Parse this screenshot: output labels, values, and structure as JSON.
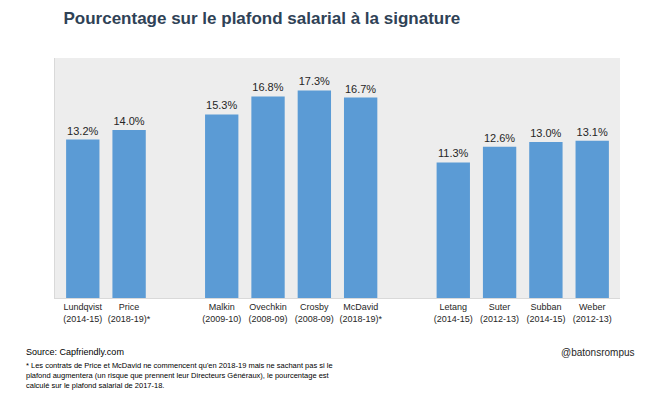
{
  "chart_data": {
    "type": "bar",
    "title": "Pourcentage sur le plafond salarial à la signature",
    "categories": [
      "Lundqvist (2014-15)",
      "Price (2018-19)*",
      null,
      "Malkin (2009-10)",
      "Ovechkin (2008-09)",
      "Crosby (2008-09)",
      "McDavid (2018-19)*",
      null,
      "Letang (2014-15)",
      "Suter (2012-13)",
      "Subban (2014-15)",
      "Weber (2012-13)"
    ],
    "values": [
      13.2,
      14.0,
      null,
      15.3,
      16.8,
      17.3,
      16.7,
      null,
      11.3,
      12.6,
      13.0,
      13.1
    ],
    "value_labels": [
      "13.2%",
      "14.0%",
      null,
      "15.3%",
      "16.8%",
      "17.3%",
      "16.7%",
      null,
      "11.3%",
      "12.6%",
      "13.0%",
      "13.1%"
    ],
    "color": "#5b9bd5",
    "ylim": [
      0,
      20
    ],
    "grid": false,
    "data_labels": true,
    "tick_labels": "x",
    "source": "Source: Capfriendly.com",
    "note": [
      "* Les contrats de Price et McDavid ne commencent qu'en 2018-19 mais ne sachant pas si le",
      "plafond augmentera (un risque que prennent leur Directeurs Généraux), le pourcentage est",
      "calculé sur le plafond salarial de 2017-18."
    ],
    "handle": "@batonsrompus"
  }
}
